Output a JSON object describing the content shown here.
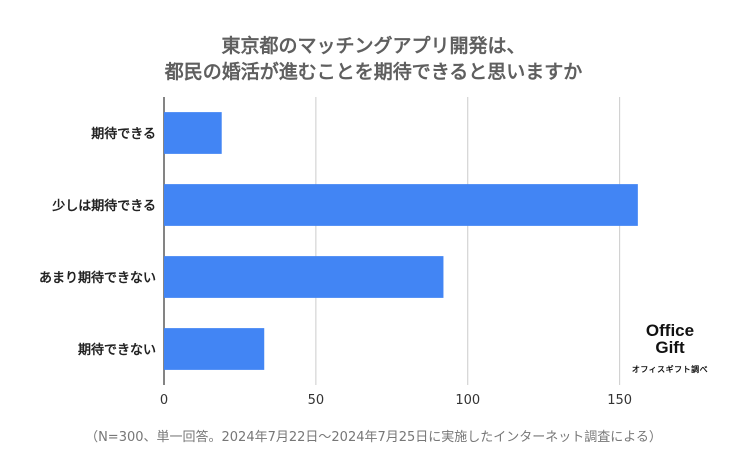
{
  "chart_data": {
    "type": "bar",
    "orientation": "horizontal",
    "title_line1": "東京都のマッチングアプリ開発は、",
    "title_line2": "都民の婚活が進むことを期待できると思いますか",
    "categories": [
      "期待できる",
      "少しは期待できる",
      "あまり期待できない",
      "期待できない"
    ],
    "values": [
      19,
      156,
      92,
      33
    ],
    "xlim": [
      0,
      160
    ],
    "xticks": [
      0,
      50,
      100,
      150
    ],
    "grid": true,
    "bar_color": "#4285f4"
  },
  "footnote": "（N=300、単一回答。2024年7月22日～2024年7月25日に実施したインターネット調査による）",
  "logo": {
    "line1": "Office",
    "line2": "Gift",
    "caption": "オフィスギフト調べ"
  }
}
